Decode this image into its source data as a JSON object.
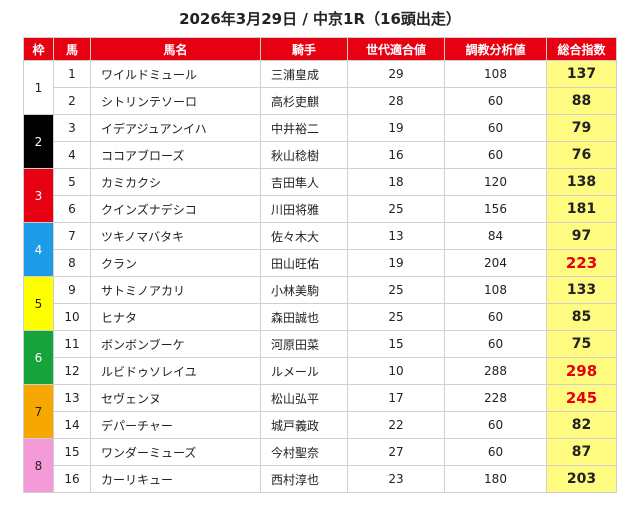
{
  "title": "2026年3月29日 / 中京1R（16頭出走）",
  "headers": {
    "waku": "枠",
    "uma": "馬",
    "name": "馬名",
    "jockey": "騎手",
    "sedai": "世代適合値",
    "chokyo": "調教分析値",
    "total": "総合指数"
  },
  "waku_groups": [
    {
      "label": "1",
      "bg": "#ffffff",
      "fg": "#222222",
      "rows": 2
    },
    {
      "label": "2",
      "bg": "#000000",
      "fg": "#ffffff",
      "rows": 2
    },
    {
      "label": "3",
      "bg": "#e60012",
      "fg": "#ffffff",
      "rows": 2
    },
    {
      "label": "4",
      "bg": "#1e9be6",
      "fg": "#ffffff",
      "rows": 2
    },
    {
      "label": "5",
      "bg": "#ffff00",
      "fg": "#222222",
      "rows": 2
    },
    {
      "label": "6",
      "bg": "#16a33b",
      "fg": "#ffffff",
      "rows": 2
    },
    {
      "label": "7",
      "bg": "#f7a800",
      "fg": "#222222",
      "rows": 2
    },
    {
      "label": "8",
      "bg": "#f59ad8",
      "fg": "#222222",
      "rows": 2
    }
  ],
  "rows": [
    {
      "uma": "1",
      "name": "ワイルドミュール",
      "jockey": "三浦皇成",
      "sedai": "29",
      "chokyo": "108",
      "total": "137",
      "high": false
    },
    {
      "uma": "2",
      "name": "シトリンテソーロ",
      "jockey": "高杉吏麒",
      "sedai": "28",
      "chokyo": "60",
      "total": "88",
      "high": false
    },
    {
      "uma": "3",
      "name": "イデアジュアンイハ",
      "jockey": "中井裕二",
      "sedai": "19",
      "chokyo": "60",
      "total": "79",
      "high": false
    },
    {
      "uma": "4",
      "name": "ココアブローズ",
      "jockey": "秋山稔樹",
      "sedai": "16",
      "chokyo": "60",
      "total": "76",
      "high": false
    },
    {
      "uma": "5",
      "name": "カミカクシ",
      "jockey": "吉田隼人",
      "sedai": "18",
      "chokyo": "120",
      "total": "138",
      "high": false
    },
    {
      "uma": "6",
      "name": "クインズナデシコ",
      "jockey": "川田将雅",
      "sedai": "25",
      "chokyo": "156",
      "total": "181",
      "high": false
    },
    {
      "uma": "7",
      "name": "ツキノマバタキ",
      "jockey": "佐々木大",
      "sedai": "13",
      "chokyo": "84",
      "total": "97",
      "high": false
    },
    {
      "uma": "8",
      "name": "クラン",
      "jockey": "田山旺佑",
      "sedai": "19",
      "chokyo": "204",
      "total": "223",
      "high": true
    },
    {
      "uma": "9",
      "name": "サトミノアカリ",
      "jockey": "小林美駒",
      "sedai": "25",
      "chokyo": "108",
      "total": "133",
      "high": false
    },
    {
      "uma": "10",
      "name": "ヒナタ",
      "jockey": "森田誠也",
      "sedai": "25",
      "chokyo": "60",
      "total": "85",
      "high": false
    },
    {
      "uma": "11",
      "name": "ボンボンブーケ",
      "jockey": "河原田菜",
      "sedai": "15",
      "chokyo": "60",
      "total": "75",
      "high": false
    },
    {
      "uma": "12",
      "name": "ルビドゥソレイユ",
      "jockey": "ルメール",
      "sedai": "10",
      "chokyo": "288",
      "total": "298",
      "high": true
    },
    {
      "uma": "13",
      "name": "セヴェンヌ",
      "jockey": "松山弘平",
      "sedai": "17",
      "chokyo": "228",
      "total": "245",
      "high": true
    },
    {
      "uma": "14",
      "name": "デパーチャー",
      "jockey": "城戸義政",
      "sedai": "22",
      "chokyo": "60",
      "total": "82",
      "high": false
    },
    {
      "uma": "15",
      "name": "ワンダーミューズ",
      "jockey": "今村聖奈",
      "sedai": "27",
      "chokyo": "60",
      "total": "87",
      "high": false
    },
    {
      "uma": "16",
      "name": "カーリキュー",
      "jockey": "西村淳也",
      "sedai": "23",
      "chokyo": "180",
      "total": "203",
      "high": false
    }
  ]
}
